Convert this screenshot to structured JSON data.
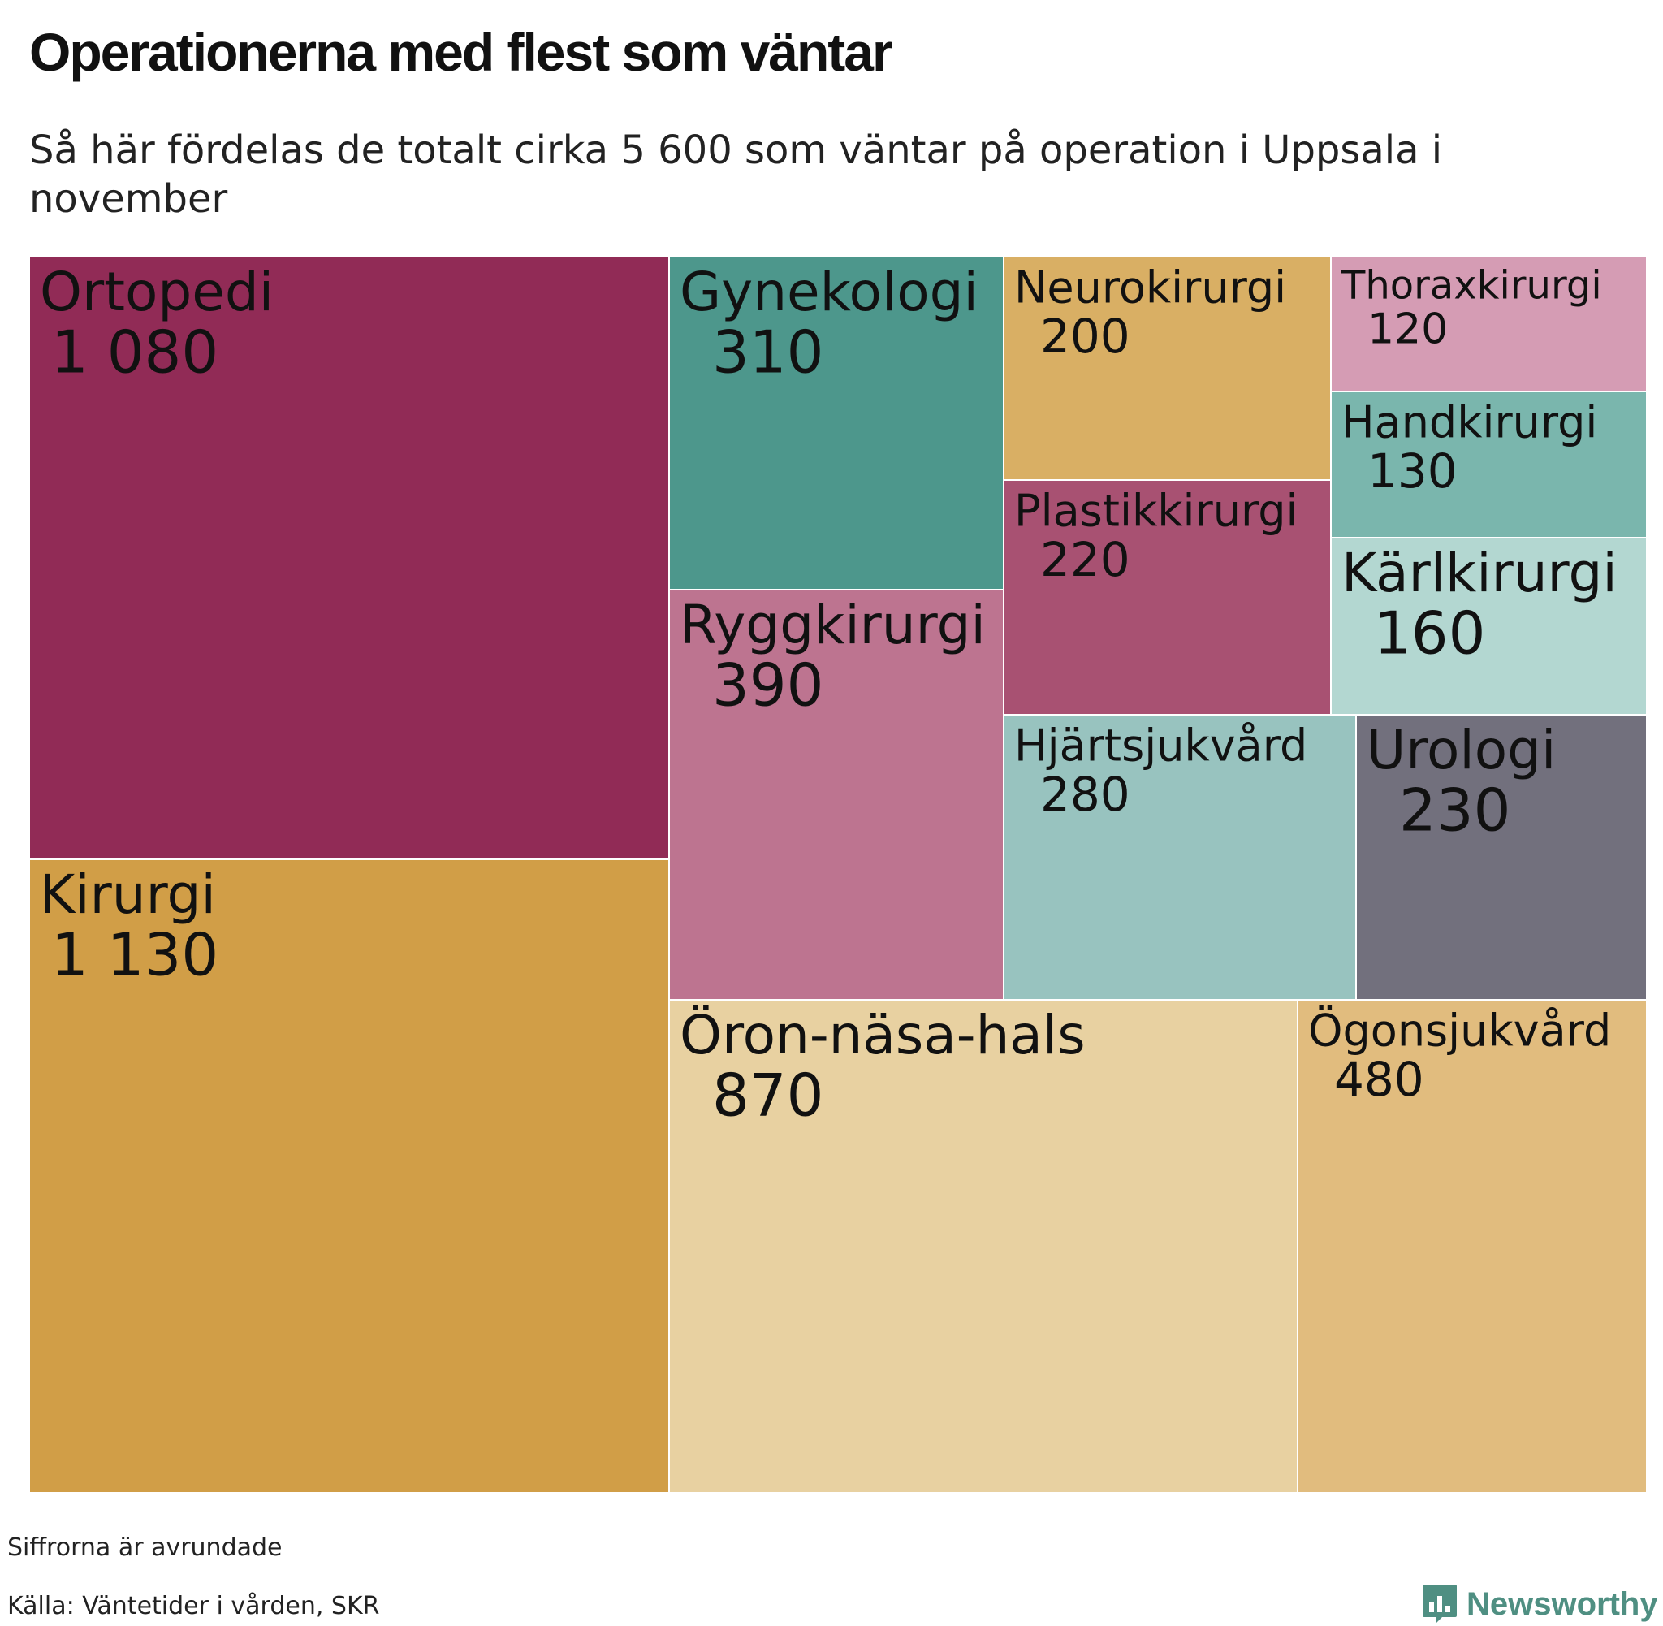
{
  "title": "Operationerna med flest som väntar",
  "subtitle": "Så här fördelas de totalt cirka 5 600 som väntar på operation i Uppsala i november",
  "footnote": "Siffrorna är avrundade",
  "source": "Källa: Väntetider i vården, SKR",
  "brand": {
    "name": "Newsworthy",
    "icon": "bar-chart-speech-bubble-icon",
    "color": "#4f8f82"
  },
  "chart_data": {
    "type": "treemap",
    "title": "Operationerna med flest som väntar",
    "total_approx": 5600,
    "items": [
      {
        "name": "Kirurgi",
        "value": 1130,
        "value_label": "1 130",
        "color": "#d19e47"
      },
      {
        "name": "Ortopedi",
        "value": 1080,
        "value_label": "1 080",
        "color": "#912b56"
      },
      {
        "name": "Öron-näsa-hals",
        "value": 870,
        "value_label": "870",
        "color": "#e8d1a1"
      },
      {
        "name": "Ögonsjukvård",
        "value": 480,
        "value_label": "480",
        "color": "#e1bc7e"
      },
      {
        "name": "Ryggkirurgi",
        "value": 390,
        "value_label": "390",
        "color": "#bd7490"
      },
      {
        "name": "Gynekologi",
        "value": 310,
        "value_label": "310",
        "color": "#4d978c"
      },
      {
        "name": "Hjärtsjukvård",
        "value": 280,
        "value_label": "280",
        "color": "#98c3bf"
      },
      {
        "name": "Urologi",
        "value": 230,
        "value_label": "230",
        "color": "#72707d"
      },
      {
        "name": "Plastikkirurgi",
        "value": 220,
        "value_label": "220",
        "color": "#a85172"
      },
      {
        "name": "Neurokirurgi",
        "value": 200,
        "value_label": "200",
        "color": "#d9af64"
      },
      {
        "name": "Kärlkirurgi",
        "value": 160,
        "value_label": "160",
        "color": "#b3d7d1"
      },
      {
        "name": "Handkirurgi",
        "value": 130,
        "value_label": "130",
        "color": "#7ab6ad"
      },
      {
        "name": "Thoraxkirurgi",
        "value": 120,
        "value_label": "120",
        "color": "#d59cb4"
      }
    ]
  }
}
